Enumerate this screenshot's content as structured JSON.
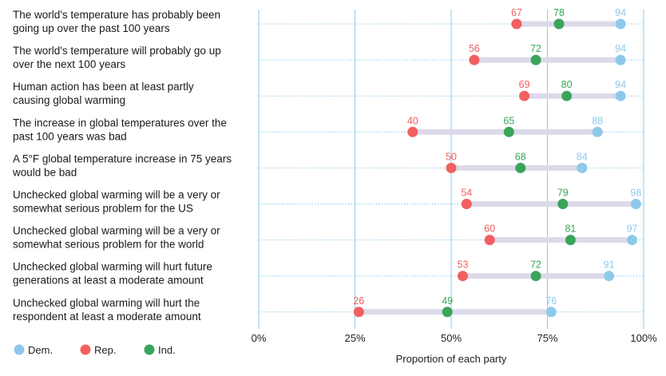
{
  "chart_data": {
    "type": "dumbbell",
    "xlabel": "Proportion of each party",
    "xlim": [
      0,
      100
    ],
    "x_ticks": [
      0,
      25,
      50,
      75,
      100
    ],
    "x_tick_labels": [
      "0%",
      "25%",
      "50%",
      "75%",
      "100%"
    ],
    "grid": "vertical",
    "legend_position": "bottom-left",
    "series": [
      {
        "name": "Dem.",
        "color": "#8ec9ec"
      },
      {
        "name": "Rep.",
        "color": "#f25f5f"
      },
      {
        "name": "Ind.",
        "color": "#3aa55a"
      }
    ],
    "categories": [
      {
        "label_lines": [
          "The world's temperature has probably been",
          "going up over the past 100 years"
        ],
        "dem": 94,
        "rep": 67,
        "ind": 78
      },
      {
        "label_lines": [
          "The world's temperature will probably go up",
          "over the next 100 years"
        ],
        "dem": 94,
        "rep": 56,
        "ind": 72
      },
      {
        "label_lines": [
          "Human action has been at least partly",
          "causing global warming"
        ],
        "dem": 94,
        "rep": 69,
        "ind": 80
      },
      {
        "label_lines": [
          "The increase in global temperatures over the",
          "past 100 years was bad"
        ],
        "dem": 88,
        "rep": 40,
        "ind": 65
      },
      {
        "label_lines": [
          "A 5°F global temperature increase in 75 years",
          "would be bad"
        ],
        "dem": 84,
        "rep": 50,
        "ind": 68
      },
      {
        "label_lines": [
          "Unchecked global warming will be a very or",
          "somewhat serious problem for the US"
        ],
        "dem": 98,
        "rep": 54,
        "ind": 79
      },
      {
        "label_lines": [
          "Unchecked global warming will be a very or",
          "somewhat serious problem for the world"
        ],
        "dem": 97,
        "rep": 60,
        "ind": 81
      },
      {
        "label_lines": [
          "Unchecked global warming will hurt future",
          "generations at least a moderate amount"
        ],
        "dem": 91,
        "rep": 53,
        "ind": 72
      },
      {
        "label_lines": [
          "Unchecked global warming will hurt the",
          "respondent at least a moderate amount"
        ],
        "dem": 76,
        "rep": 26,
        "ind": 49
      }
    ]
  }
}
